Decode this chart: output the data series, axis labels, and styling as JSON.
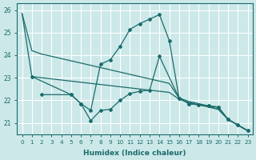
{
  "background_color": "#cce8e8",
  "grid_color": "#ffffff",
  "line_color": "#1a6b6b",
  "x_label": "Humidex (Indice chaleur)",
  "x_ticks": [
    0,
    1,
    2,
    3,
    4,
    5,
    6,
    7,
    8,
    9,
    10,
    11,
    12,
    13,
    14,
    15,
    16,
    17,
    18,
    19,
    20,
    21,
    22,
    23
  ],
  "ylim": [
    20.5,
    26.3
  ],
  "xlim": [
    -0.5,
    23.5
  ],
  "yticks": [
    21,
    22,
    23,
    24,
    25,
    26
  ],
  "line1_x": [
    0,
    1,
    2,
    3,
    4,
    5,
    6,
    7,
    8,
    9,
    10,
    11,
    12,
    13,
    14,
    15,
    16,
    17,
    18,
    19,
    20,
    21,
    22,
    23
  ],
  "line1_y": [
    25.85,
    24.2,
    24.05,
    23.95,
    23.85,
    23.75,
    23.65,
    23.55,
    23.45,
    23.35,
    23.25,
    23.15,
    23.05,
    22.95,
    22.85,
    22.75,
    22.1,
    21.95,
    21.85,
    21.75,
    21.6,
    21.15,
    20.9,
    20.65
  ],
  "line2_x": [
    0,
    1,
    2,
    3,
    4,
    5,
    6,
    7,
    8,
    9,
    10,
    11,
    12,
    13,
    14,
    15,
    16,
    17,
    18,
    19,
    20,
    21,
    22,
    23
  ],
  "line2_y": [
    25.85,
    23.05,
    23.0,
    22.95,
    22.9,
    22.85,
    22.8,
    22.75,
    22.7,
    22.65,
    22.6,
    22.55,
    22.5,
    22.45,
    22.4,
    22.35,
    22.05,
    21.9,
    21.8,
    21.7,
    21.6,
    21.15,
    20.9,
    20.65
  ],
  "line3_x": [
    1,
    5,
    6,
    7,
    8,
    9,
    10,
    11,
    12,
    13,
    14,
    15,
    16,
    17,
    18,
    19,
    20,
    21,
    22,
    23
  ],
  "line3_y": [
    23.05,
    22.25,
    21.85,
    21.55,
    23.6,
    23.8,
    24.4,
    25.15,
    25.4,
    25.6,
    25.8,
    24.65,
    22.1,
    21.85,
    21.8,
    21.75,
    21.7,
    21.15,
    20.9,
    20.65
  ],
  "line4_x": [
    2,
    5,
    6,
    7,
    8,
    9,
    10,
    11,
    12,
    13,
    14,
    16,
    17,
    18,
    19,
    20,
    21,
    22,
    23
  ],
  "line4_y": [
    22.25,
    22.25,
    21.85,
    21.1,
    21.55,
    21.6,
    22.0,
    22.3,
    22.4,
    22.45,
    23.95,
    22.1,
    21.85,
    21.8,
    21.75,
    21.7,
    21.15,
    20.9,
    20.65
  ]
}
